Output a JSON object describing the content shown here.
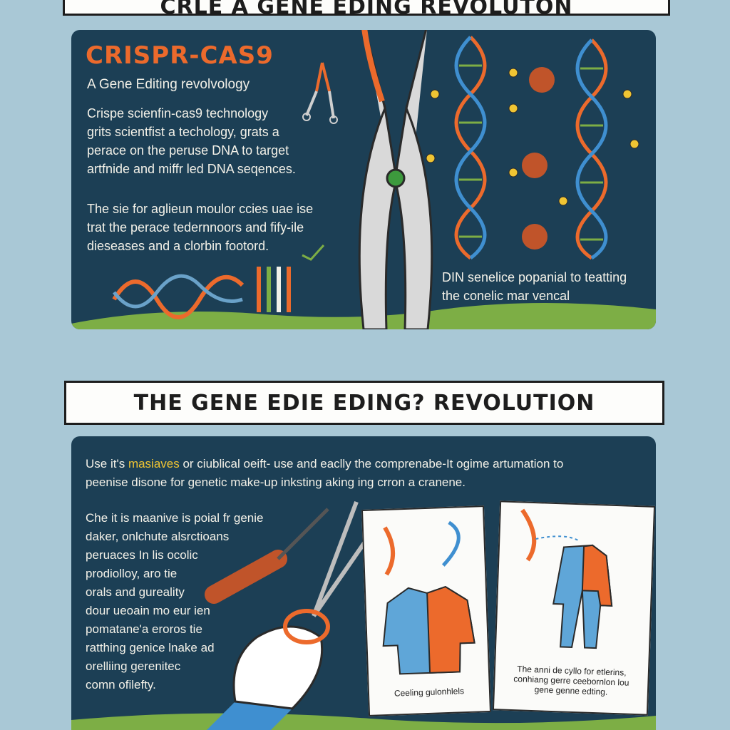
{
  "top_banner": {
    "text": "CRLE A GENE EDING REVOLUTON"
  },
  "top_panel": {
    "title": "CRISPR-CAS9",
    "subtitle": "A Gene Editing revolvology",
    "paragraph1": [
      "Crispe scienfin-cas9 technology",
      "grits scientfist a techology, grats a",
      "perace on the peruse DNA to target",
      "artfnide and miffr led DNA seqences."
    ],
    "paragraph2": [
      "The sie for aglieun moulor ccies uae ise",
      "trat the perace tedernnoors and fify-ile",
      "dieseases and a clorbin footord."
    ],
    "caption": [
      "DIN senelice popanial to teatting",
      "the conelic mar vencal"
    ]
  },
  "mid_banner": {
    "text": "THE GENE EDIE EDING? REVOLUTION"
  },
  "bottom_panel": {
    "intro_line1_a": "Use it's ",
    "intro_line1_highlight": "masiaves",
    "intro_line1_b": " or ciublical oeift- use and eaclly the comprenabe-It ogime artumation to",
    "intro_line2": "peenise disone for genetic make-up inksting aking ing crron a cranene.",
    "left_text": [
      "Che it is maanive is poial fr genie",
      "daker, onlchute alsrctioans",
      "peruaces In lis ocolic",
      "prodiolloy, aro tie",
      "orals and gureality",
      "dour ueoain mo eur ien",
      "pomatane'a eroros tie",
      "ratthing genice lnake ad",
      "orelliing gerenitec",
      "comn ofilefty."
    ],
    "card_shirt_caption": [
      "Ceeling gulonhlels"
    ],
    "card_suit_caption": [
      "The anni de cyllo for etlerins,",
      "conhiang gerre ceebornlon lou",
      "gene genne edting."
    ]
  },
  "colors": {
    "panel": "#1c3f55",
    "background": "#a9c8d6",
    "accent_orange": "#ec6a2c",
    "highlight_yellow": "#f0c533",
    "grass": "#7dae45"
  }
}
